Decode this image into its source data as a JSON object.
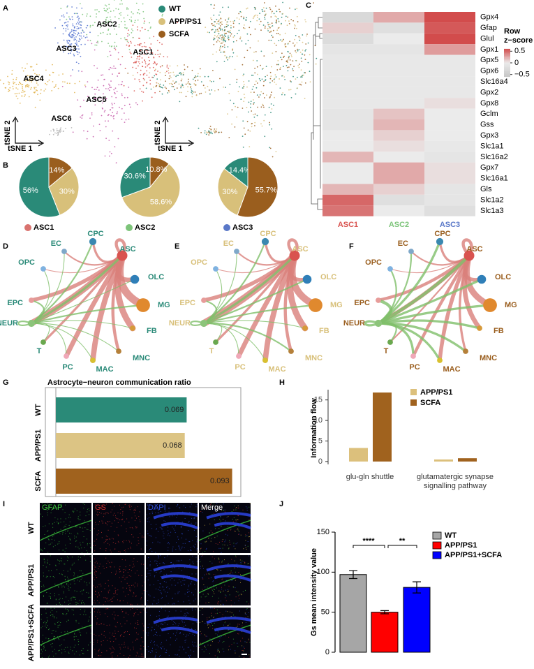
{
  "chart_data": [
    {
      "type": "tsne",
      "panel": "A",
      "xlabel": "tSNE 1",
      "ylabel": "tSNE 2",
      "clusters": [
        "ASC1",
        "ASC2",
        "ASC3",
        "ASC4",
        "ASC5",
        "ASC6"
      ],
      "cluster_colors": [
        "#d9534f",
        "#7dc47a",
        "#4f6fcf",
        "#e1b14a",
        "#c659a8",
        "#b3b3b3"
      ],
      "series": [
        {
          "name": "WT",
          "color": "#2a8a78"
        },
        {
          "name": "APP/PS1",
          "color": "#d8c07a"
        },
        {
          "name": "SCFA",
          "color": "#9a5e1e"
        }
      ]
    },
    {
      "type": "pie",
      "panel": "B",
      "title": "ASC1",
      "title_color": "#d9736f",
      "values": [
        56,
        30,
        14
      ],
      "value_labels": [
        "56%",
        "30%",
        "14%"
      ],
      "colors": [
        "#2a8a78",
        "#d8c07a",
        "#9a5e1e"
      ]
    },
    {
      "type": "pie",
      "title": "ASC2",
      "title_color": "#7dc47a",
      "values": [
        30.6,
        58.6,
        10.8
      ],
      "value_labels": [
        "30.6%",
        "58.6%",
        "10.8%"
      ],
      "colors": [
        "#2a8a78",
        "#d8c07a",
        "#9a5e1e"
      ]
    },
    {
      "type": "pie",
      "title": "ASC3",
      "title_color": "#5a78c8",
      "values": [
        14.4,
        30,
        55.7
      ],
      "value_labels": [
        "14.4%",
        "30%",
        "55.7%"
      ],
      "colors": [
        "#2a8a78",
        "#d8c07a",
        "#9a5e1e"
      ]
    },
    {
      "type": "heatmap",
      "panel": "C",
      "rows": [
        "Gpx4",
        "Gfap",
        "Glul",
        "Gpx1",
        "Gpx5",
        "Gpx6",
        "Slc16a4",
        "Gpx2",
        "Gpx8",
        "Gclm",
        "Gss",
        "Gpx3",
        "Slc1a1",
        "Slc16a2",
        "Gpx7",
        "Slc16a1",
        "Gls",
        "Slc1a2",
        "Slc1a3"
      ],
      "columns": [
        "ASC1",
        "ASC2",
        "ASC3"
      ],
      "column_colors": [
        "#d9534f",
        "#7dc47a",
        "#5a78c8"
      ],
      "values": [
        [
          -0.3,
          0.25,
          0.6
        ],
        [
          0.1,
          -0.2,
          0.55
        ],
        [
          -0.25,
          0,
          0.65
        ],
        [
          -0.1,
          -0.1,
          0.3
        ],
        [
          -0.05,
          -0.05,
          -0.05
        ],
        [
          -0.05,
          -0.05,
          -0.05
        ],
        [
          -0.05,
          -0.05,
          -0.05
        ],
        [
          -0.05,
          -0.05,
          -0.05
        ],
        [
          -0.05,
          -0.05,
          0.05
        ],
        [
          -0.1,
          0.15,
          0
        ],
        [
          -0.1,
          0.2,
          0
        ],
        [
          0,
          0.1,
          0
        ],
        [
          0,
          0.05,
          -0.05
        ],
        [
          0.2,
          0,
          -0.1
        ],
        [
          0,
          0.25,
          0.05
        ],
        [
          0,
          0.25,
          0.05
        ],
        [
          0.2,
          0.1,
          -0.1
        ],
        [
          0.5,
          -0.2,
          -0.1
        ],
        [
          0.45,
          0,
          -0.2
        ]
      ],
      "colorbar_title": [
        "Row",
        "z−score"
      ],
      "zlim": [
        -0.6,
        0.6
      ],
      "zticks": [
        0.5,
        0,
        {
          "value": -0.5,
          "label": "−0.5"
        }
      ]
    },
    {
      "type": "network",
      "panel": "D",
      "label_color": "#2a8a78",
      "nodes": [
        "EC",
        "CPC",
        "ASC",
        "OPC",
        "OLC",
        "EPC",
        "MG",
        "NEUR",
        "FB",
        "T",
        "MNC",
        "PC",
        "MAC"
      ],
      "node_colors": [
        "#7fa8c9",
        "#3a88b0",
        "#d9534f",
        "#7fb2e0",
        "#2f7fb8",
        "#e79c9a",
        "#e0892e",
        "#8cc47a",
        "#d69a3a",
        "#6aa84f",
        "#b5803a",
        "#f0a8b8",
        "#d8c030"
      ],
      "node_sizes": [
        2,
        3,
        5,
        2,
        4,
        2,
        7,
        3,
        2,
        2,
        2,
        2,
        2
      ],
      "series": [
        {
          "color": "#d9807a",
          "values": [
            2,
            3,
            4,
            1,
            6,
            5,
            10,
            8,
            8,
            3,
            4,
            6,
            7
          ]
        },
        {
          "color": "#7fbf6a",
          "values": [
            1,
            2,
            3,
            1,
            1,
            2,
            2,
            2,
            1,
            1,
            1,
            1,
            1
          ]
        }
      ]
    },
    {
      "type": "network",
      "panel": "E",
      "label_color": "#d8c07a",
      "nodes": [
        "EC",
        "CPC",
        "ASC",
        "OPC",
        "OLC",
        "EPC",
        "MG",
        "NEUR",
        "FB",
        "T",
        "MNC",
        "PC",
        "MAC"
      ],
      "node_colors": [
        "#7fa8c9",
        "#3a88b0",
        "#d9534f",
        "#7fb2e0",
        "#2f7fb8",
        "#e79c9a",
        "#e0892e",
        "#8cc47a",
        "#d69a3a",
        "#6aa84f",
        "#b5803a",
        "#f0a8b8",
        "#d8c030"
      ],
      "node_sizes": [
        2,
        3,
        5,
        2,
        4,
        2,
        7,
        3,
        2,
        2,
        2,
        2,
        2
      ],
      "series": [
        {
          "color": "#d9807a",
          "values": [
            2,
            3,
            4,
            1,
            5,
            5,
            9,
            9,
            8,
            3,
            4,
            6,
            7
          ]
        },
        {
          "color": "#7fbf6a",
          "values": [
            1,
            2,
            3,
            1,
            2,
            2,
            2,
            2,
            1,
            1,
            2,
            1,
            1
          ]
        }
      ]
    },
    {
      "type": "network",
      "panel": "F",
      "label_color": "#9a5e1e",
      "nodes": [
        "EC",
        "CPC",
        "ASC",
        "OPC",
        "OLC",
        "EPC",
        "MG",
        "NEUR",
        "FB",
        "T",
        "MNC",
        "PC",
        "MAC"
      ],
      "node_colors": [
        "#7fa8c9",
        "#3a88b0",
        "#d9534f",
        "#7fb2e0",
        "#2f7fb8",
        "#e79c9a",
        "#e0892e",
        "#8cc47a",
        "#d69a3a",
        "#6aa84f",
        "#b5803a",
        "#f0a8b8",
        "#d8c030"
      ],
      "node_sizes": [
        2,
        3,
        5,
        2,
        4,
        2,
        7,
        3,
        2,
        2,
        2,
        2,
        2
      ],
      "series": [
        {
          "color": "#d9807a",
          "values": [
            2,
            3,
            4,
            1,
            5,
            4,
            8,
            5,
            6,
            2,
            3,
            4,
            5
          ]
        },
        {
          "color": "#7fbf6a",
          "values": [
            2,
            3,
            4,
            2,
            3,
            4,
            3,
            3,
            3,
            2,
            3,
            3,
            3
          ]
        }
      ]
    },
    {
      "type": "hbar",
      "panel": "G",
      "title": "Astrocyte−neuron communication ratio",
      "categories": [
        "WT",
        "APP/PS1",
        "SCFA"
      ],
      "values": [
        0.069,
        0.068,
        0.093
      ],
      "colors": [
        "#2a8a78",
        "#dcc484",
        "#a0621e"
      ],
      "xlim": [
        0,
        0.095
      ]
    },
    {
      "type": "grouped_bar",
      "panel": "H",
      "ylabel": "Information flow",
      "categories": [
        "glu-gln shuttle",
        "glutamatergic synapse signalling pathway"
      ],
      "series": [
        {
          "name": "APP/PS1",
          "color": "#dcc07c",
          "values": [
            3.3,
            0.5
          ]
        },
        {
          "name": "SCFA",
          "color": "#a0621e",
          "values": [
            16.8,
            0.8
          ]
        }
      ],
      "ylim": [
        -0.7,
        17.5
      ],
      "yticks": [
        0,
        5,
        10,
        15
      ]
    },
    {
      "type": "image_grid",
      "panel": "I",
      "columns": [
        "GFAP",
        "GS",
        "DAPI",
        "Merge"
      ],
      "column_colors": [
        "#3cc43c",
        "#d03030",
        "#3050e0",
        "#ffffff"
      ],
      "rows": [
        "WT",
        "APP/PS1",
        "APP/PS1+SCFA"
      ]
    },
    {
      "type": "error_bar",
      "panel": "J",
      "ylabel": "Gs mean intensity value",
      "categories": [
        "WT",
        "APP/PS1",
        "APP/PS1+SCFA"
      ],
      "values": [
        97,
        50,
        81
      ],
      "errors": [
        5,
        2,
        7
      ],
      "colors": [
        "#a6a6a6",
        "#ff0000",
        "#0000ff"
      ],
      "ylim": [
        0,
        150
      ],
      "yticks": [
        0,
        50,
        100,
        150
      ],
      "annotations": [
        "****",
        "**"
      ]
    }
  ]
}
